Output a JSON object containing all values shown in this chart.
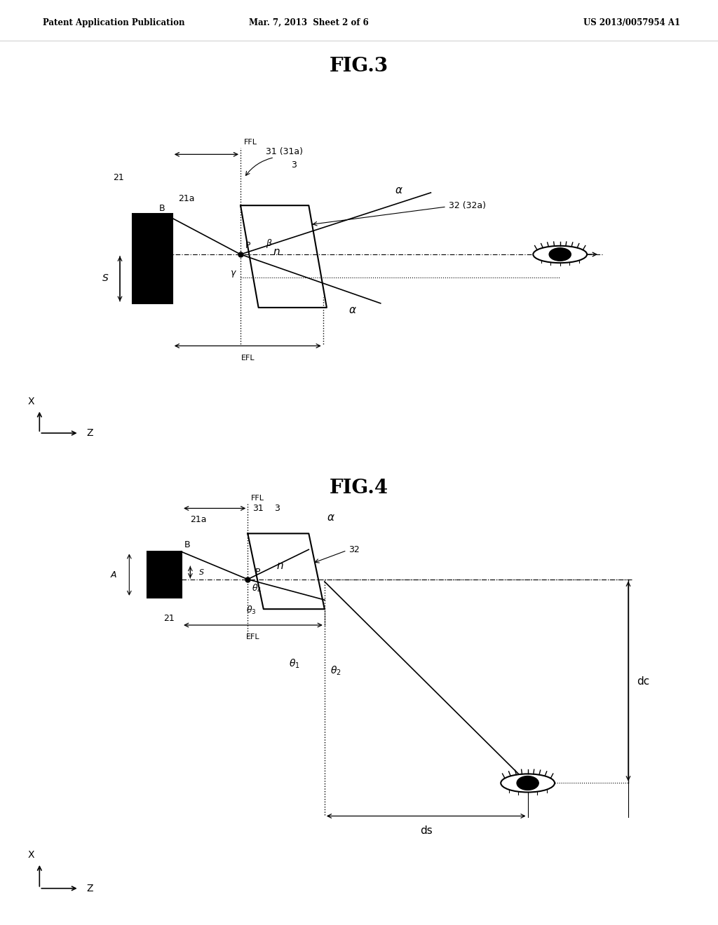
{
  "bg_color": "#ffffff",
  "header_left": "Patent Application Publication",
  "header_mid": "Mar. 7, 2013  Sheet 2 of 6",
  "header_right": "US 2013/0057954 A1",
  "fig3_title": "FIG.3",
  "fig4_title": "FIG.4"
}
